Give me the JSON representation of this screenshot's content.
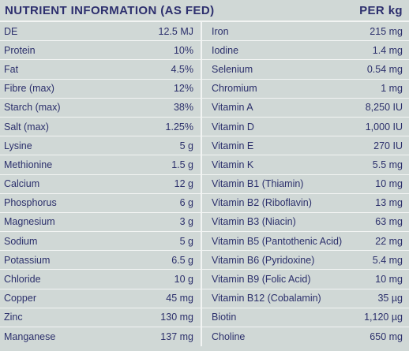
{
  "header": {
    "title": "NUTRIENT INFORMATION (AS FED)",
    "per": "PER kg"
  },
  "left_rows": [
    {
      "name": "DE",
      "value": "12.5 MJ"
    },
    {
      "name": "Protein",
      "value": "10%"
    },
    {
      "name": "Fat",
      "value": "4.5%"
    },
    {
      "name": "Fibre (max)",
      "value": "12%"
    },
    {
      "name": "Starch (max)",
      "value": "38%"
    },
    {
      "name": "Salt (max)",
      "value": "1.25%"
    },
    {
      "name": "Lysine",
      "value": "5 g"
    },
    {
      "name": "Methionine",
      "value": "1.5 g"
    },
    {
      "name": "Calcium",
      "value": "12 g"
    },
    {
      "name": "Phosphorus",
      "value": "6 g"
    },
    {
      "name": "Magnesium",
      "value": "3 g"
    },
    {
      "name": "Sodium",
      "value": "5 g"
    },
    {
      "name": "Potassium",
      "value": "6.5 g"
    },
    {
      "name": "Chloride",
      "value": "10 g"
    },
    {
      "name": "Copper",
      "value": "45 mg"
    },
    {
      "name": "Zinc",
      "value": "130 mg"
    },
    {
      "name": "Manganese",
      "value": "137 mg"
    }
  ],
  "right_rows": [
    {
      "name": "Iron",
      "value": "215 mg"
    },
    {
      "name": "Iodine",
      "value": "1.4 mg"
    },
    {
      "name": "Selenium",
      "value": "0.54 mg"
    },
    {
      "name": "Chromium",
      "value": "1 mg"
    },
    {
      "name": "Vitamin A",
      "value": "8,250 IU"
    },
    {
      "name": "Vitamin D",
      "value": "1,000 IU"
    },
    {
      "name": "Vitamin E",
      "value": "270 IU"
    },
    {
      "name": "Vitamin K",
      "value": "5.5 mg"
    },
    {
      "name": "Vitamin B1 (Thiamin)",
      "value": "10 mg"
    },
    {
      "name": "Vitamin B2 (Riboflavin)",
      "value": "13 mg"
    },
    {
      "name": "Vitamin B3 (Niacin)",
      "value": "63 mg"
    },
    {
      "name": "Vitamin B5 (Pantothenic Acid)",
      "value": "22 mg"
    },
    {
      "name": "Vitamin B6 (Pyridoxine)",
      "value": "5.4 mg"
    },
    {
      "name": "Vitamin B9 (Folic Acid)",
      "value": "10 mg"
    },
    {
      "name": "Vitamin B12 (Cobalamin)",
      "value": "35 µg"
    },
    {
      "name": "Biotin",
      "value": "1,120 µg"
    },
    {
      "name": "Choline",
      "value": "650 mg"
    }
  ]
}
